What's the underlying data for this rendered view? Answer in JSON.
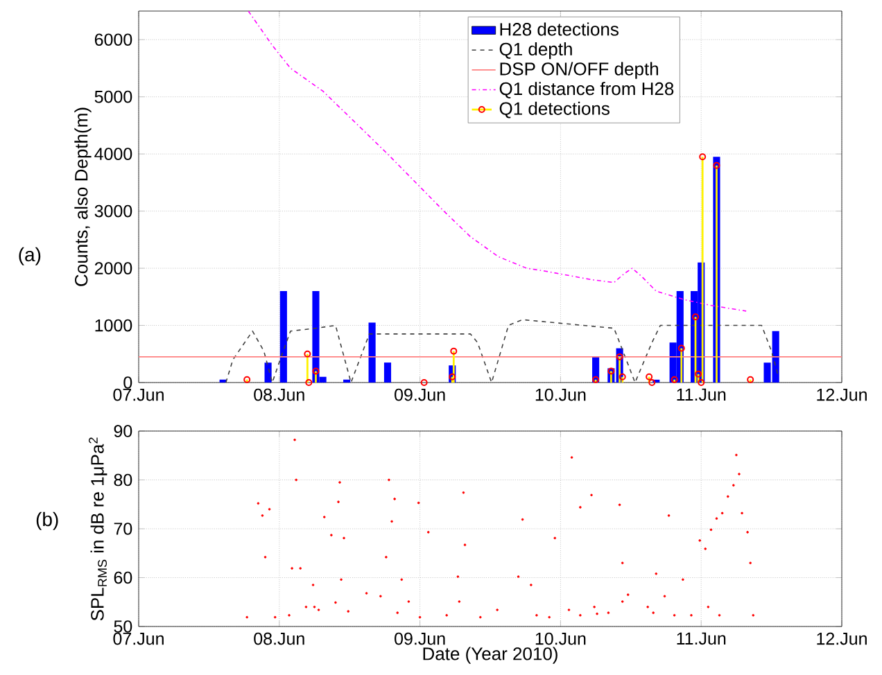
{
  "chart_data": [
    {
      "type": "line",
      "ylabel": "Counts, also Depth(m)",
      "annotations": [
        "(a)"
      ],
      "xlim": [
        "2010-06-07",
        "2010-06-12"
      ],
      "ylim": [
        0,
        6500
      ],
      "xticks": [
        {
          "value": "2010-06-07",
          "label": "07.Jun"
        },
        {
          "value": "2010-06-08",
          "label": "08.Jun"
        },
        {
          "value": "2010-06-09",
          "label": "09.Jun"
        },
        {
          "value": "2010-06-10",
          "label": "10.Jun"
        },
        {
          "value": "2010-06-11",
          "label": "11.Jun"
        },
        {
          "value": "2010-06-12",
          "label": "12.Jun"
        }
      ],
      "yticks": [
        0,
        1000,
        2000,
        3000,
        4000,
        5000,
        6000
      ],
      "grid": true,
      "legend": "top right",
      "series": [
        {
          "name": "H28 detections",
          "type": "bar",
          "color": "#0000ff",
          "x": [
            "2010-06-07T14:24",
            "2010-06-07T22:05",
            "2010-06-08T00:43",
            "2010-06-08T06:14",
            "2010-06-08T07:26",
            "2010-06-08T11:31",
            "2010-06-08T15:50",
            "2010-06-08T18:29",
            "2010-06-09T05:31",
            "2010-06-10T06:00",
            "2010-06-10T08:38",
            "2010-06-10T10:05",
            "2010-06-10T16:19",
            "2010-06-10T19:12",
            "2010-06-10T20:24",
            "2010-06-10T22:48",
            "2010-06-11T00:00",
            "2010-06-11T02:38",
            "2010-06-11T11:17",
            "2010-06-11T12:43"
          ],
          "values": [
            50,
            350,
            1600,
            1600,
            100,
            50,
            1050,
            350,
            300,
            450,
            250,
            600,
            50,
            700,
            1600,
            1600,
            2100,
            3950,
            350,
            900
          ]
        },
        {
          "name": "Q1 depth",
          "type": "line",
          "color": "#404040",
          "line_style": "dashed",
          "x": [
            "2010-06-07T14:53",
            "2010-06-07T16:05",
            "2010-06-07T19:26",
            "2010-06-07T21:22",
            "2010-06-07T22:48",
            "2010-06-08T00:29",
            "2010-06-08T01:55",
            "2010-06-08T06:14",
            "2010-06-08T09:36",
            "2010-06-08T12:14",
            "2010-06-08T15:22",
            "2010-06-09T08:38",
            "2010-06-09T09:50",
            "2010-06-09T12:14",
            "2010-06-09T15:07",
            "2010-06-09T17:31",
            "2010-06-10T09:07",
            "2010-06-10T10:05",
            "2010-06-10T12:43",
            "2010-06-10T15:36",
            "2010-06-10T17:02",
            "2010-06-11T10:19",
            "2010-06-11T12:00",
            "2010-06-11T13:12"
          ],
          "values": [
            0,
            400,
            900,
            550,
            0,
            500,
            900,
            950,
            1000,
            0,
            850,
            850,
            700,
            0,
            1000,
            1100,
            950,
            700,
            0,
            700,
            1000,
            1000,
            550,
            100
          ]
        },
        {
          "name": "DSP ON/OFF depth",
          "type": "line",
          "color": "#ff8080",
          "line_style": "solid",
          "x": [
            "2010-06-07",
            "2010-06-12"
          ],
          "values": [
            450,
            450
          ]
        },
        {
          "name": "Q1 distance from H28",
          "type": "line",
          "color": "#ff00ff",
          "line_style": "dashdot",
          "x": [
            "2010-06-07T18:43",
            "2010-06-07T22:48",
            "2010-06-08T01:55",
            "2010-06-08T07:26",
            "2010-06-08T12:58",
            "2010-06-08T18:29",
            "2010-06-08T23:17",
            "2010-06-09T04:05",
            "2010-06-09T08:38",
            "2010-06-09T13:26",
            "2010-06-09T18:14",
            "2010-06-09T21:22",
            "2010-06-10T05:17",
            "2010-06-10T09:07",
            "2010-06-10T10:48",
            "2010-06-10T12:14",
            "2010-06-10T13:55",
            "2010-06-10T16:19",
            "2010-06-10T21:07",
            "2010-06-11T01:41",
            "2010-06-11T07:41"
          ],
          "values": [
            6500,
            5900,
            5500,
            5100,
            4550,
            4000,
            3500,
            3000,
            2550,
            2200,
            2000,
            1950,
            1800,
            1750,
            1900,
            2000,
            1850,
            1600,
            1450,
            1350,
            1250
          ]
        },
        {
          "name": "Q1 detections",
          "type": "lollipop",
          "color": "#ff0000",
          "marker": "circle",
          "x": [
            "2010-06-07T18:29",
            "2010-06-08T04:48",
            "2010-06-08T05:02",
            "2010-06-08T06:14",
            "2010-06-09T00:43",
            "2010-06-09T05:31",
            "2010-06-09T05:46",
            "2010-06-10T06:00",
            "2010-06-10T08:38",
            "2010-06-10T10:05",
            "2010-06-10T10:34",
            "2010-06-10T15:07",
            "2010-06-10T15:36",
            "2010-06-10T19:26",
            "2010-06-10T20:38",
            "2010-06-10T23:02",
            "2010-06-10T23:31",
            "2010-06-11T00:00",
            "2010-06-11T00:14",
            "2010-06-11T02:38",
            "2010-06-11T08:24"
          ],
          "values": [
            50,
            500,
            0,
            200,
            0,
            100,
            550,
            50,
            200,
            450,
            100,
            100,
            0,
            50,
            600,
            1150,
            150,
            0,
            3950,
            3800,
            50
          ]
        }
      ]
    },
    {
      "type": "scatter",
      "ylabel": "SPL$_{RMS}$ in dB re 1μPa$^{2}$",
      "xlabel": "Date (Year 2010)",
      "annotations": [
        "(b)"
      ],
      "xlim": [
        "2010-06-07",
        "2010-06-12"
      ],
      "ylim": [
        50,
        90
      ],
      "xticks": [
        {
          "value": "2010-06-07",
          "label": "07.Jun"
        },
        {
          "value": "2010-06-08",
          "label": "08.Jun"
        },
        {
          "value": "2010-06-09",
          "label": "09.Jun"
        },
        {
          "value": "2010-06-10",
          "label": "10.Jun"
        },
        {
          "value": "2010-06-11",
          "label": "11.Jun"
        },
        {
          "value": "2010-06-12",
          "label": "12.Jun"
        }
      ],
      "yticks": [
        50,
        60,
        70,
        80,
        90
      ],
      "grid": true,
      "marker": "circle",
      "series": [
        {
          "color": "#ff0000",
          "x": [
            "2010-06-07T18:29",
            "2010-06-07T23:17",
            "2010-06-07T20:24",
            "2010-06-07T21:07",
            "2010-06-07T21:36",
            "2010-06-07T22:19",
            "2010-06-08T01:41",
            "2010-06-08T02:10",
            "2010-06-08T02:38",
            "2010-06-08T02:53",
            "2010-06-08T03:36",
            "2010-06-08T04:34",
            "2010-06-08T05:46",
            "2010-06-08T06:00",
            "2010-06-08T06:43",
            "2010-06-08T07:41",
            "2010-06-08T08:53",
            "2010-06-08T09:36",
            "2010-06-08T10:05",
            "2010-06-08T10:19",
            "2010-06-08T10:34",
            "2010-06-08T11:02",
            "2010-06-08T11:46",
            "2010-06-08T14:53",
            "2010-06-08T17:17",
            "2010-06-08T18:14",
            "2010-06-08T18:43",
            "2010-06-08T19:12",
            "2010-06-08T19:41",
            "2010-06-08T20:10",
            "2010-06-08T20:53",
            "2010-06-08T22:05",
            "2010-06-09T00:00",
            "2010-06-08T23:46",
            "2010-06-09T01:26",
            "2010-06-09T04:34",
            "2010-06-09T06:29",
            "2010-06-09T06:43",
            "2010-06-09T07:26",
            "2010-06-09T07:41",
            "2010-06-09T10:19",
            "2010-06-09T13:12",
            "2010-06-09T16:48",
            "2010-06-09T17:31",
            "2010-06-09T18:58",
            "2010-06-09T19:55",
            "2010-06-09T22:05",
            "2010-06-09T23:02",
            "2010-06-10T01:26",
            "2010-06-10T01:55",
            "2010-06-10T03:22",
            "2010-06-10T03:22",
            "2010-06-10T05:46",
            "2010-06-10T05:17",
            "2010-06-10T06:14",
            "2010-06-10T08:10",
            "2010-06-10T10:05",
            "2010-06-10T10:34",
            "2010-06-10T10:34",
            "2010-06-10T11:31",
            "2010-06-10T14:53",
            "2010-06-10T15:50",
            "2010-06-10T16:19",
            "2010-06-10T17:46",
            "2010-06-10T18:29",
            "2010-06-10T19:26",
            "2010-06-10T20:53",
            "2010-06-10T22:19",
            "2010-06-10T23:46",
            "2010-06-11T00:43",
            "2010-06-11T01:41",
            "2010-06-11T02:38",
            "2010-06-11T03:36",
            "2010-06-11T04:34",
            "2010-06-11T05:31",
            "2010-06-11T06:00",
            "2010-06-11T06:29",
            "2010-06-11T06:58",
            "2010-06-11T07:55",
            "2010-06-11T08:24",
            "2010-06-11T08:53",
            "2010-06-11T03:07",
            "2010-06-11T01:12"
          ],
          "values": [
            51.9,
            51.9,
            75.2,
            72.7,
            64.2,
            74.0,
            52.3,
            61.9,
            88.2,
            80.0,
            61.9,
            54.0,
            58.5,
            54.0,
            53.4,
            72.4,
            68.7,
            54.9,
            75.5,
            79.5,
            59.6,
            68.1,
            53.1,
            56.8,
            56.2,
            64.2,
            80.0,
            71.5,
            76.1,
            52.8,
            59.6,
            55.1,
            51.9,
            75.3,
            69.3,
            52.3,
            60.2,
            55.1,
            77.4,
            66.7,
            51.9,
            53.4,
            60.2,
            71.9,
            58.5,
            52.3,
            51.9,
            68.1,
            53.4,
            84.6,
            52.3,
            74.4,
            54.0,
            76.9,
            52.6,
            52.8,
            74.9,
            63.0,
            55.1,
            56.5,
            54.0,
            52.8,
            60.8,
            56.2,
            72.7,
            52.3,
            59.6,
            52.3,
            67.6,
            65.9,
            69.8,
            72.1,
            73.2,
            76.6,
            78.9,
            85.1,
            81.2,
            73.2,
            69.3,
            63.0,
            52.3,
            52.3,
            54.0
          ]
        }
      ]
    }
  ]
}
